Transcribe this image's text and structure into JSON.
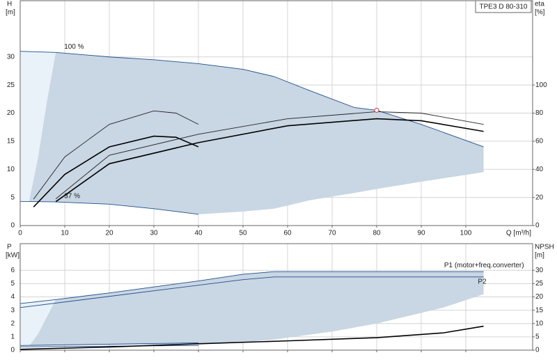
{
  "chart_data": [
    {
      "type": "line",
      "title": "TPE3 D 80-310",
      "y_label": "H",
      "y_unit": "[m]",
      "y2_label": "eta",
      "y2_unit": "[%]",
      "x_label": "Q [m³/h]",
      "xlim": [
        0,
        115
      ],
      "xticks": [
        0,
        10,
        20,
        30,
        40,
        50,
        60,
        70,
        80,
        90,
        100
      ],
      "show_xtick_labels": true,
      "ylim": [
        0,
        40
      ],
      "yticks": [
        0,
        5,
        10,
        15,
        20,
        25,
        30
      ],
      "y2lim": [
        0,
        160
      ],
      "y2ticks": [
        0,
        20,
        40,
        60,
        80,
        100
      ],
      "grid": true,
      "series": [
        {
          "type": "area",
          "color": "#c9d6e3",
          "x": [
            0,
            8,
            20,
            30,
            40,
            50,
            57,
            65,
            75,
            80,
            90,
            104
          ],
          "values": [
            31,
            30.8,
            30,
            29.5,
            28.8,
            27.8,
            26.5,
            24,
            21,
            20.5,
            18,
            14
          ],
          "lower": [
            4.3,
            4.2,
            3.8,
            3,
            2,
            2.5,
            3,
            4.5,
            5.8,
            6.5,
            7.8,
            9.5
          ]
        },
        {
          "type": "area",
          "color": "#e9f1f9",
          "x": [
            0,
            2,
            4,
            6,
            8
          ],
          "values": [
            31,
            31,
            30.9,
            30.9,
            30.8
          ],
          "lower": [
            4.3,
            4.3,
            12,
            22,
            30.8
          ]
        },
        {
          "type": "line",
          "name": "100 %",
          "label_at": "start",
          "color": "#1f4e8c",
          "x": [
            0,
            8,
            20,
            30,
            40,
            50,
            57,
            65,
            75,
            80,
            90,
            104
          ],
          "values": [
            31,
            30.8,
            30,
            29.5,
            28.8,
            27.8,
            26.5,
            24,
            21,
            20.5,
            18,
            14
          ]
        },
        {
          "type": "line",
          "name": "37 %",
          "label_at": "start",
          "color": "#1f4e8c",
          "x": [
            0,
            8,
            20,
            30,
            40
          ],
          "values": [
            4.3,
            4.2,
            3.8,
            3,
            2
          ]
        },
        {
          "type": "line",
          "color": "#222222",
          "x": [
            3,
            10,
            20,
            30,
            35,
            40
          ],
          "values": [
            4.7,
            12.2,
            18,
            20.4,
            20,
            18
          ]
        },
        {
          "type": "line",
          "bold": true,
          "color": "#000000",
          "x": [
            3,
            10,
            20,
            30,
            35,
            40
          ],
          "values": [
            3.3,
            9.1,
            14,
            15.9,
            15.7,
            14
          ]
        },
        {
          "type": "line",
          "axis": "y2",
          "color": "#222222",
          "x": [
            8,
            20,
            40,
            60,
            80,
            90,
            104
          ],
          "values": [
            19,
            50,
            65,
            76,
            81,
            80,
            72
          ]
        },
        {
          "type": "line",
          "axis": "y2",
          "bold": true,
          "color": "#000000",
          "x": [
            8,
            20,
            40,
            60,
            80,
            90,
            104
          ],
          "values": [
            17,
            44,
            59,
            71,
            76,
            74.6,
            67
          ]
        },
        {
          "type": "point",
          "color": "#e05050",
          "x": [
            80
          ],
          "values": [
            20.5
          ]
        }
      ]
    },
    {
      "type": "line",
      "y_label": "P",
      "y_unit": "[kW]",
      "y2_label": "NPSH",
      "y2_unit": "[m]",
      "xlim": [
        0,
        115
      ],
      "xticks": [
        0,
        10,
        20,
        30,
        40,
        50,
        60,
        70,
        80,
        90,
        100
      ],
      "show_xtick_labels": false,
      "ylim": [
        0,
        8
      ],
      "yticks": [
        0,
        1,
        2,
        3,
        4,
        5,
        6
      ],
      "y2lim": [
        0,
        40
      ],
      "y2ticks": [
        0,
        5,
        10,
        15,
        20,
        25,
        30
      ],
      "grid": true,
      "series": [
        {
          "type": "area",
          "color": "#c9d6e3",
          "x": [
            0,
            8,
            20,
            40,
            50,
            57,
            70,
            80,
            95,
            104
          ],
          "values": [
            3.5,
            3.8,
            4.3,
            5.2,
            5.7,
            5.9,
            5.9,
            5.9,
            5.9,
            5.9
          ],
          "lower": [
            0.3,
            0.35,
            0.4,
            0.45,
            0.6,
            0.8,
            1.4,
            2,
            3.2,
            4.2
          ]
        },
        {
          "type": "area",
          "color": "#e9f1f9",
          "x": [
            0,
            2,
            4,
            6,
            8
          ],
          "values": [
            3.5,
            3.55,
            3.6,
            3.7,
            3.8
          ],
          "lower": [
            0.3,
            0.3,
            1.2,
            2.5,
            3.8
          ]
        },
        {
          "type": "line",
          "name": "P1 (motor+freq.converter)",
          "label_at": "end",
          "color": "#1f4e8c",
          "x": [
            0,
            8,
            20,
            40,
            50,
            57,
            70,
            80,
            95,
            104
          ],
          "values": [
            3.5,
            3.8,
            4.3,
            5.2,
            5.7,
            5.9,
            5.9,
            5.9,
            5.9,
            5.9
          ]
        },
        {
          "type": "line",
          "name": "P2",
          "label_at": "below-end",
          "color": "#1f4e8c",
          "x": [
            0,
            50,
            57,
            104
          ],
          "values": [
            3.2,
            5.3,
            5.5,
            5.5
          ]
        },
        {
          "type": "line",
          "color": "#1f4e8c",
          "x": [
            0,
            40
          ],
          "values": [
            0.35,
            0.55
          ]
        },
        {
          "type": "line",
          "color": "#1f4e8c",
          "x": [
            0,
            40
          ],
          "values": [
            0.25,
            0.35
          ]
        },
        {
          "type": "line",
          "axis": "y2",
          "bold": true,
          "color": "#000000",
          "x": [
            0,
            20,
            40,
            60,
            80,
            95,
            104
          ],
          "values": [
            0.3,
            1.2,
            2.4,
            3.5,
            4.7,
            6.5,
            9
          ]
        }
      ]
    }
  ]
}
